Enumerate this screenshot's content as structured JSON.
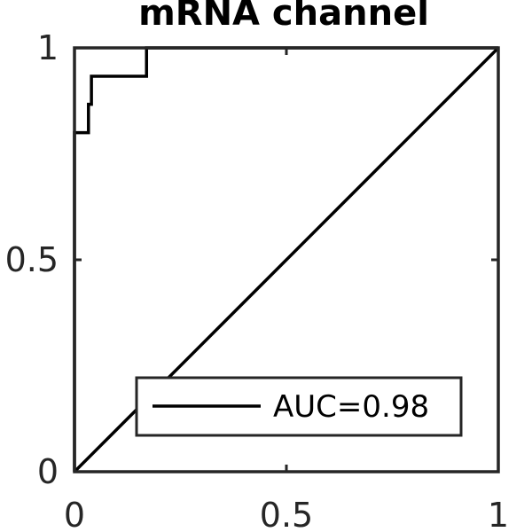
{
  "chart_data": {
    "type": "line",
    "title": "mRNA channel",
    "xlabel": "",
    "ylabel": "",
    "xlim": [
      0,
      1
    ],
    "ylim": [
      0,
      1
    ],
    "x_ticks": [
      0,
      0.5,
      1
    ],
    "y_ticks": [
      0,
      0.5,
      1
    ],
    "x_tick_labels": [
      "0",
      "0.5",
      "1"
    ],
    "y_tick_labels": [
      "0",
      "0.5",
      "1"
    ],
    "grid": false,
    "legend_position": "bottom-right",
    "series": [
      {
        "name": "AUC=0.98",
        "color": "#000000",
        "x": [
          0,
          0,
          0.033,
          0.033,
          0.04,
          0.04,
          0.05,
          0.05,
          0.17,
          0.17,
          1
        ],
        "y": [
          0,
          0.8,
          0.8,
          0.867,
          0.867,
          0.933,
          0.933,
          0.933,
          0.933,
          1,
          1
        ]
      }
    ],
    "reference_line": {
      "x": [
        0,
        1
      ],
      "y": [
        0,
        1
      ],
      "color": "#000000"
    }
  }
}
